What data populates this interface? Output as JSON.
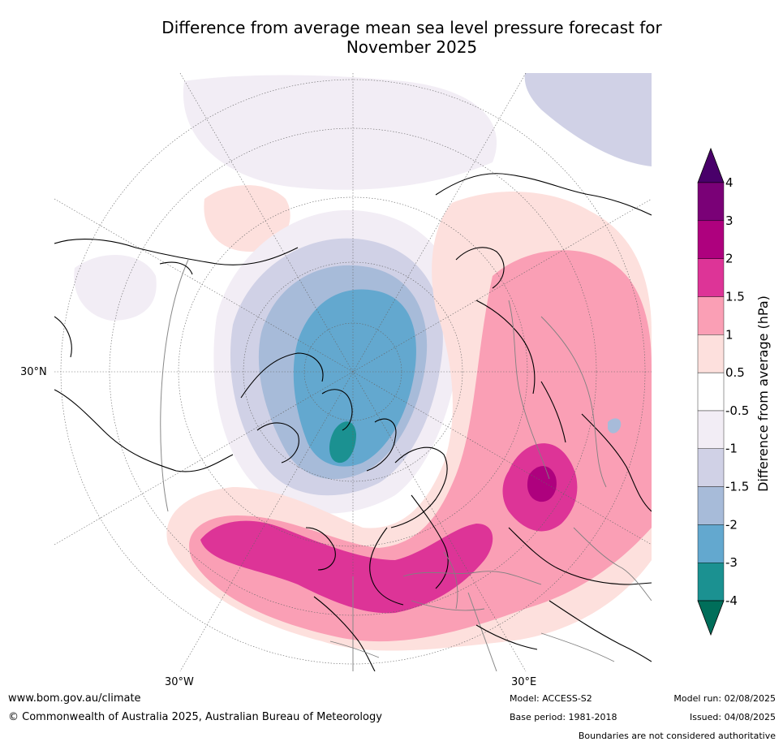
{
  "title": {
    "line1": "Difference from average mean sea level pressure forecast for",
    "line2": "November 2025"
  },
  "map": {
    "projection": "polar-stereographic-north",
    "coord_labels": {
      "lat_30n": "30°N",
      "lon_30w": "30°W",
      "lon_30e": "30°E"
    },
    "land_color": "#000000",
    "border_color": "#808080"
  },
  "colorbar": {
    "label": "Difference from average (hPa)",
    "tick_labels": [
      "-4",
      "-3",
      "-2",
      "-1.5",
      "-1",
      "-0.5",
      "0.5",
      "1",
      "1.5",
      "2",
      "3",
      "4"
    ],
    "colors": [
      "#006e5a",
      "#1b9191",
      "#63a8cf",
      "#a7bbd9",
      "#d0d1e6",
      "#f2edf5",
      "#ffffff",
      "#fde0dd",
      "#fa9fb5",
      "#dd3497",
      "#ae017e",
      "#7a0177",
      "#49006a"
    ]
  },
  "footer": {
    "website": "www.bom.gov.au/climate",
    "copyright": "© Commonwealth of Australia 2025, Australian Bureau of Meteorology",
    "model": "Model: ACCESS-S2",
    "base_period": "Base period: 1981-2018",
    "model_run": "Model run: 02/08/2025",
    "issued": "Issued: 04/08/2025",
    "boundaries": "Boundaries are not considered authoritative"
  }
}
